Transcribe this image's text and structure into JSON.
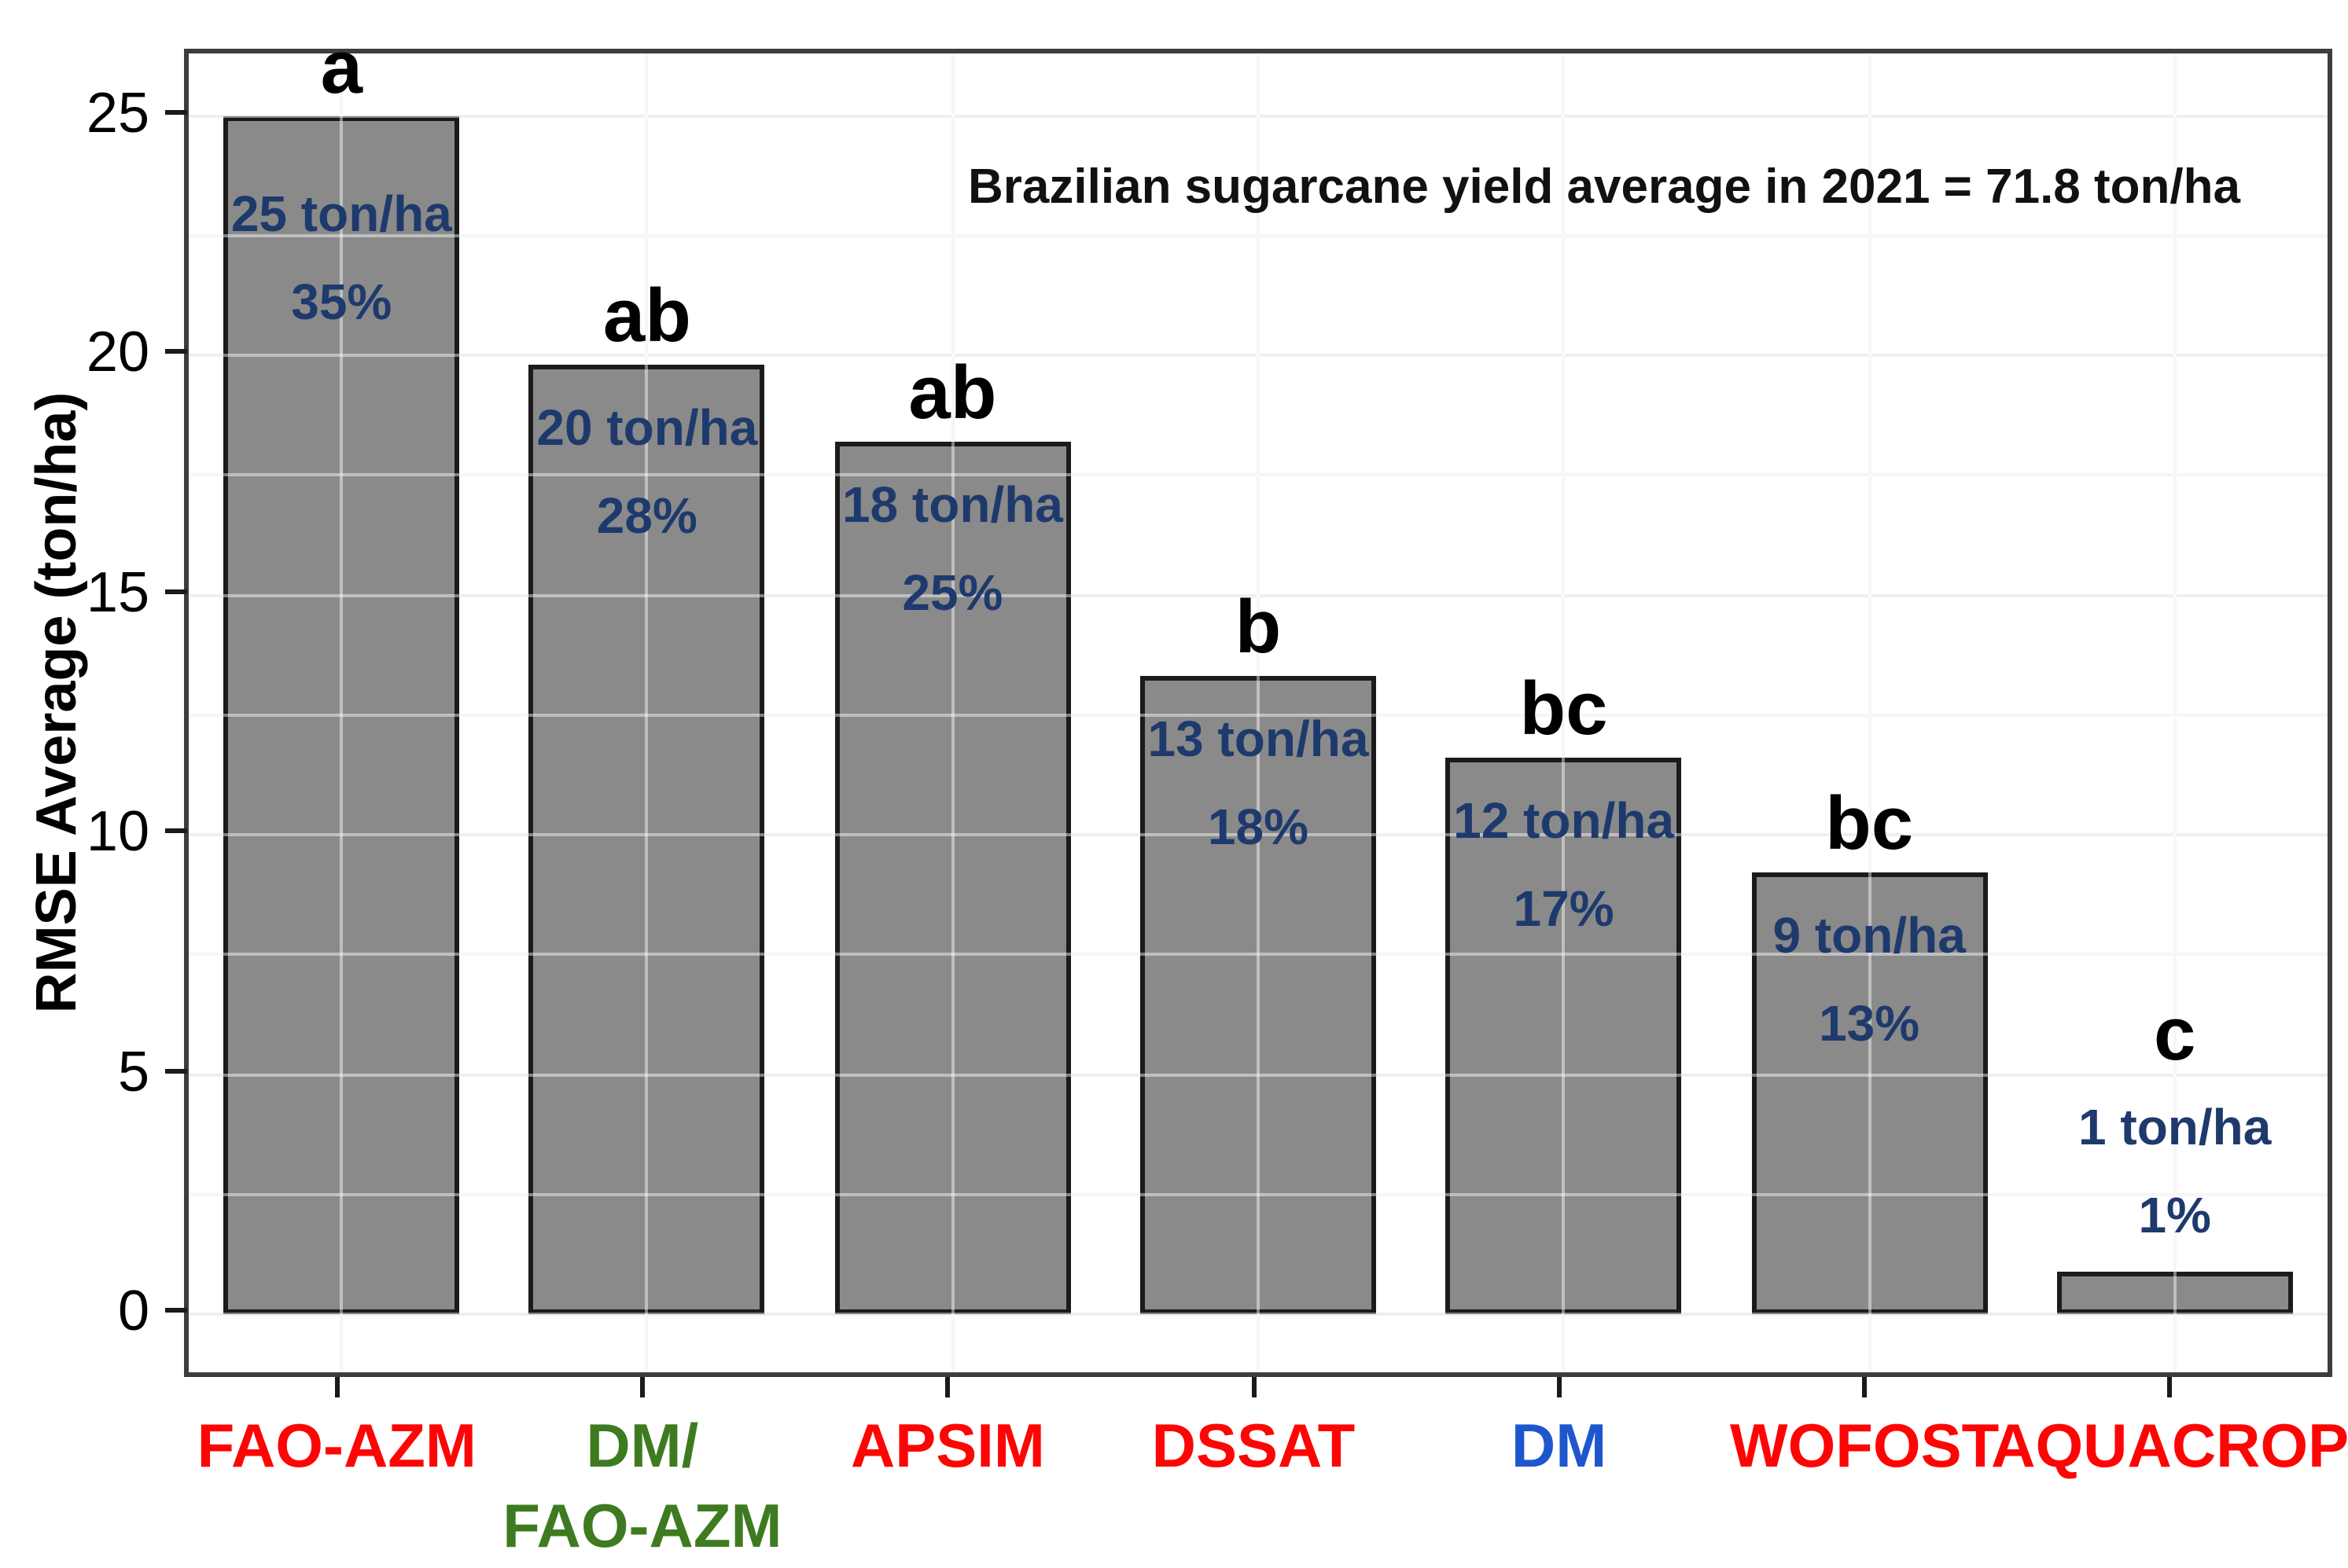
{
  "figure": {
    "annotation": "Brazilian sugarcane yield average in 2021 = 71.8 ton/ha",
    "y_axis_title": "RMSE Average (ton/ha)"
  },
  "chart_data": {
    "type": "bar",
    "title": "",
    "annotation": "Brazilian sugarcane yield average in 2021 = 71.8 ton/ha",
    "xlabel": "",
    "ylabel": "RMSE Average (ton/ha)",
    "ylim": [
      0,
      25
    ],
    "yticks": [
      0,
      5,
      10,
      15,
      20,
      25
    ],
    "ytick_labels": [
      "0",
      "5",
      "10",
      "15",
      "20",
      "25"
    ],
    "minor_grid_step": 2.5,
    "grid": "on",
    "legend": "none",
    "categories": [
      "FAO-AZM",
      "DM/FAO-AZM",
      "APSIM",
      "DSSAT",
      "DM",
      "WOFOST",
      "AQUACROP"
    ],
    "values": [
      25.0,
      19.8,
      18.2,
      13.3,
      11.6,
      9.2,
      0.9
    ],
    "bars": [
      {
        "model": "FAO-AZM",
        "axis_lines": [
          "FAO-AZM"
        ],
        "axis_color": "#fe0505",
        "value": 25.0,
        "value_label": "25 ton/ha",
        "percent_label": "35%",
        "sig_letter": "a",
        "label_inside": true
      },
      {
        "model": "DM/FAO-AZM",
        "axis_lines": [
          "DM/",
          "FAO-AZM"
        ],
        "axis_color": "#3e7b20",
        "value": 19.8,
        "value_label": "20 ton/ha",
        "percent_label": "28%",
        "sig_letter": "ab",
        "label_inside": true
      },
      {
        "model": "APSIM",
        "axis_lines": [
          "APSIM"
        ],
        "axis_color": "#fe0505",
        "value": 18.2,
        "value_label": "18 ton/ha",
        "percent_label": "25%",
        "sig_letter": "ab",
        "label_inside": true
      },
      {
        "model": "DSSAT",
        "axis_lines": [
          "DSSAT"
        ],
        "axis_color": "#fe0505",
        "value": 13.3,
        "value_label": "13 ton/ha",
        "percent_label": "18%",
        "sig_letter": "b",
        "label_inside": true
      },
      {
        "model": "DM",
        "axis_lines": [
          "DM"
        ],
        "axis_color": "#1e56cd",
        "value": 11.6,
        "value_label": "12 ton/ha",
        "percent_label": "17%",
        "sig_letter": "bc",
        "label_inside": true
      },
      {
        "model": "WOFOST",
        "axis_lines": [
          "WOFOST"
        ],
        "axis_color": "#fe0505",
        "value": 9.2,
        "value_label": "9 ton/ha",
        "percent_label": "13%",
        "sig_letter": "bc",
        "label_inside": true
      },
      {
        "model": "AQUACROP",
        "axis_lines": [
          "AQUACROP"
        ],
        "axis_color": "#fe0505",
        "value": 0.9,
        "value_label": "1 ton/ha",
        "percent_label": "1%",
        "sig_letter": "c",
        "label_inside": false
      }
    ],
    "colors": {
      "bar_fill": "#8a8a8a",
      "bar_border": "#1b1b1b",
      "value_label": "#1e3a6d",
      "sig_letter": "#000000",
      "axis_frame": "#3d3d3d",
      "tick": "#1a1a1a",
      "grid_major": "#e2e2e2",
      "grid_minor": "#efefef",
      "annotation_text": "#111111"
    }
  }
}
